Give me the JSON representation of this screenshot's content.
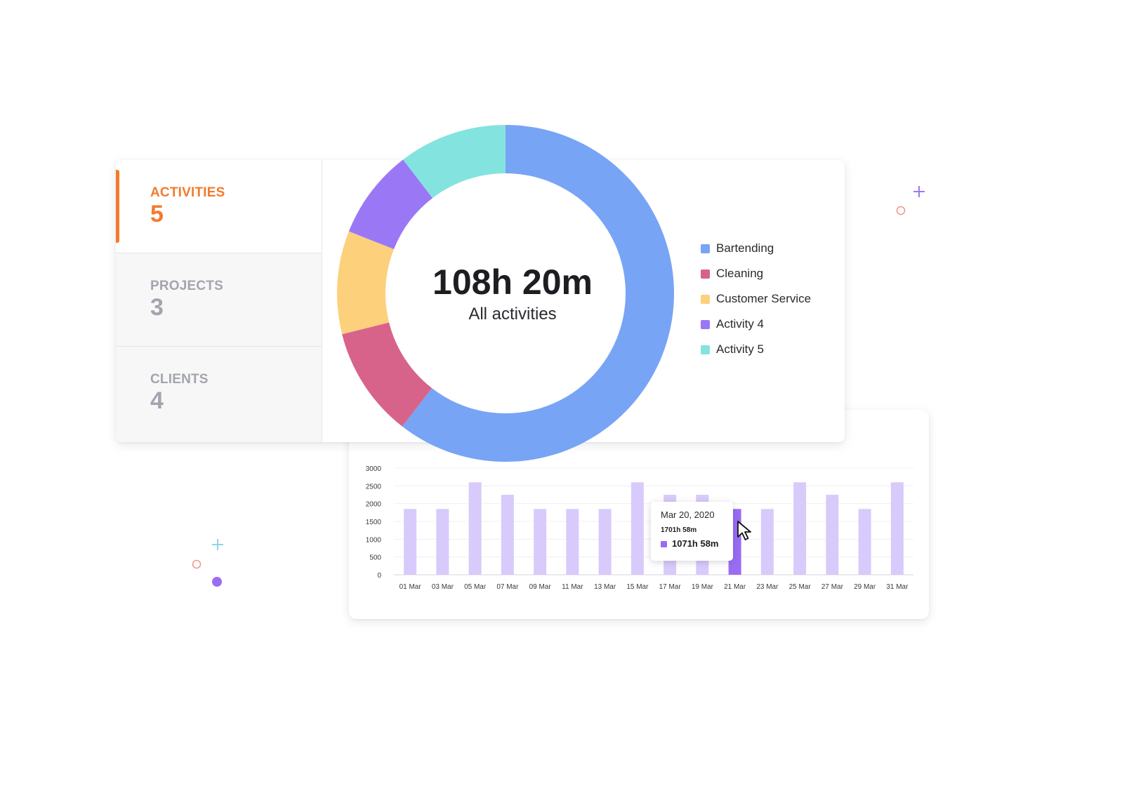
{
  "stats": [
    {
      "label": "ACTIVITIES",
      "value": "5",
      "active": true
    },
    {
      "label": "PROJECTS",
      "value": "3",
      "active": false
    },
    {
      "label": "CLIENTS",
      "value": "4",
      "active": false
    }
  ],
  "donut": {
    "total": "108h 20m",
    "caption": "All activities"
  },
  "colors": {
    "accent": "#f47a2d",
    "bar": "#d8cbfb",
    "bar_highlight": "#9a6cf3"
  },
  "chart_data": [
    {
      "type": "pie",
      "categories": [
        "Bartending",
        "Cleaning",
        "Customer Service",
        "Activity 4",
        "Activity 5"
      ],
      "values": [
        60.5,
        10.6,
        9.9,
        8.6,
        10.4
      ],
      "colors": [
        "#78a4f5",
        "#d8638a",
        "#fdd07c",
        "#9a78f5",
        "#83e3df"
      ],
      "legend_position": "right"
    },
    {
      "type": "bar",
      "categories": [
        "01 Mar",
        "03 Mar",
        "05 Mar",
        "07 Mar",
        "09 Mar",
        "11 Mar",
        "13 Mar",
        "15 Mar",
        "17 Mar",
        "19 Mar",
        "21 Mar",
        "23 Mar",
        "25 Mar",
        "27 Mar",
        "29 Mar",
        "31 Mar"
      ],
      "values": [
        1850,
        1850,
        2600,
        2250,
        1850,
        1850,
        1850,
        2600,
        2250,
        2250,
        1850,
        1850,
        2600,
        2250,
        1850,
        2600
      ],
      "highlight_index": 10,
      "yticks": [
        0,
        500,
        1000,
        1500,
        2000,
        2500,
        3000
      ],
      "ylim": [
        0,
        3000
      ],
      "grid": true
    }
  ],
  "tooltip": {
    "date": "Mar 20, 2020",
    "total": "1701h 58m",
    "value": "1071h 58m"
  }
}
